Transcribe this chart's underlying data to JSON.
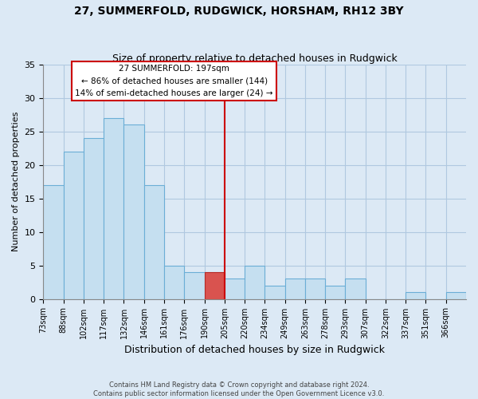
{
  "title": "27, SUMMERFOLD, RUDGWICK, HORSHAM, RH12 3BY",
  "subtitle": "Size of property relative to detached houses in Rudgwick",
  "xlabel": "Distribution of detached houses by size in Rudgwick",
  "ylabel": "Number of detached properties",
  "footnote1": "Contains HM Land Registry data © Crown copyright and database right 2024.",
  "footnote2": "Contains public sector information licensed under the Open Government Licence v3.0.",
  "bin_labels": [
    "73sqm",
    "88sqm",
    "102sqm",
    "117sqm",
    "132sqm",
    "146sqm",
    "161sqm",
    "176sqm",
    "190sqm",
    "205sqm",
    "220sqm",
    "234sqm",
    "249sqm",
    "263sqm",
    "278sqm",
    "293sqm",
    "307sqm",
    "322sqm",
    "337sqm",
    "351sqm",
    "366sqm"
  ],
  "bar_heights": [
    17,
    22,
    24,
    27,
    26,
    17,
    5,
    4,
    4,
    3,
    5,
    2,
    3,
    3,
    2,
    3,
    0,
    0,
    1,
    0,
    1
  ],
  "bar_color": "#c5dff0",
  "bar_edge_color": "#6baed6",
  "highlight_bar_index": 8,
  "highlight_bar_color": "#d9534f",
  "highlight_bar_edge_color": "#b52b27",
  "vline_color": "#cc0000",
  "vline_position": 9,
  "annotation_title": "27 SUMMERFOLD: 197sqm",
  "annotation_line1": "← 86% of detached houses are smaller (144)",
  "annotation_line2": "14% of semi-detached houses are larger (24) →",
  "annotation_box_facecolor": "#ffffff",
  "annotation_border_color": "#cc0000",
  "ylim": [
    0,
    35
  ],
  "yticks": [
    0,
    5,
    10,
    15,
    20,
    25,
    30,
    35
  ],
  "background_color": "#dce9f5",
  "plot_bg_color": "#dce9f5",
  "grid_color": "#b0c8e0",
  "title_fontsize": 10,
  "subtitle_fontsize": 9
}
